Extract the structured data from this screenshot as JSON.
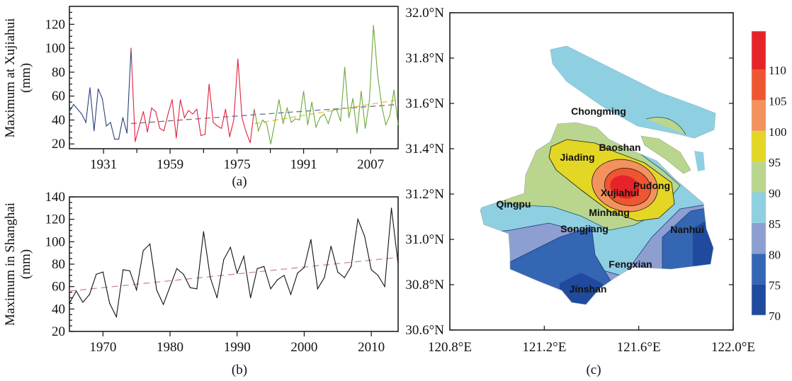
{
  "chart_data": [
    {
      "id": "a",
      "type": "line",
      "caption": "(a)",
      "ylabel_line1": "Maximum at Xujiahui",
      "ylabel_line2": "(mm)",
      "ylim": [
        16,
        135
      ],
      "yticks": [
        20,
        40,
        60,
        80,
        100,
        120
      ],
      "xtick_labels": [
        {
          "label": "1931",
          "index": 8.3
        },
        {
          "label": "1959",
          "index": 24.5
        },
        {
          "label": "1975",
          "index": 40.8
        },
        {
          "label": "1991",
          "index": 57.0
        },
        {
          "label": "2007",
          "index": 73.3
        }
      ],
      "series": [
        {
          "name": "period-1",
          "color": "#2b3f7a",
          "start_index": 0,
          "values": [
            47,
            53,
            49,
            45,
            38,
            67,
            31,
            66,
            58,
            35,
            38,
            24,
            24,
            42,
            29,
            100
          ]
        },
        {
          "name": "period-2",
          "color": "#e0203a",
          "start_index": 15,
          "values": [
            100,
            22,
            35,
            47,
            30,
            50,
            47,
            33,
            31,
            45,
            57,
            25,
            57,
            42,
            48,
            45,
            49,
            27,
            28,
            70,
            38,
            35,
            33,
            49,
            26,
            40,
            91,
            42,
            30,
            21,
            49
          ]
        },
        {
          "name": "period-3",
          "color": "#6aa83a",
          "start_index": 45,
          "values": [
            49,
            31,
            40,
            37,
            20,
            38,
            57,
            37,
            50,
            38,
            41,
            40,
            64,
            36,
            55,
            34,
            42,
            45,
            37,
            48,
            49,
            39,
            84,
            42,
            58,
            29,
            64,
            33,
            56,
            119,
            78,
            52,
            36,
            44,
            65,
            36
          ]
        }
      ],
      "trends": [
        {
          "name": "overall-trend",
          "color": "#6a6f96",
          "from": [
            15,
            37
          ],
          "to": [
            80,
            53
          ]
        },
        {
          "name": "recent-trend",
          "color": "#e2c42a",
          "from": [
            45,
            37
          ],
          "to": [
            80,
            57
          ]
        }
      ]
    },
    {
      "id": "b",
      "type": "line",
      "caption": "(b)",
      "ylabel_line1": "Maximum in Shanghai",
      "ylabel_line2": "(mm)",
      "xlim": [
        1965,
        2014
      ],
      "ylim": [
        20,
        140
      ],
      "yticks": [
        20,
        40,
        60,
        80,
        100,
        120,
        140
      ],
      "xticks": [
        1970,
        1980,
        1990,
        2000,
        2010
      ],
      "x": [
        1965,
        1966,
        1967,
        1968,
        1969,
        1970,
        1971,
        1972,
        1973,
        1974,
        1975,
        1976,
        1977,
        1978,
        1979,
        1980,
        1981,
        1982,
        1983,
        1984,
        1985,
        1986,
        1987,
        1988,
        1989,
        1990,
        1991,
        1992,
        1993,
        1994,
        1995,
        1996,
        1997,
        1998,
        1999,
        2000,
        2001,
        2002,
        2003,
        2004,
        2005,
        2006,
        2007,
        2008,
        2009,
        2010,
        2011,
        2012,
        2013,
        2014
      ],
      "values": [
        45,
        56,
        46,
        53,
        71,
        73,
        45,
        33,
        75,
        74,
        57,
        92,
        98,
        57,
        44,
        60,
        76,
        71,
        59,
        58,
        109,
        68,
        50,
        84,
        95,
        72,
        87,
        50,
        76,
        78,
        58,
        66,
        70,
        53,
        72,
        77,
        102,
        58,
        68,
        96,
        73,
        68,
        78,
        120,
        105,
        75,
        70,
        60,
        130,
        80
      ],
      "line_color": "#111111",
      "trend": {
        "color": "#c98a9a",
        "from": [
          1965,
          56
        ],
        "to": [
          2014,
          86
        ]
      }
    },
    {
      "id": "c",
      "type": "heatmap",
      "caption": "(c)",
      "lat_labels": [
        "32.0°N",
        "31.8°N",
        "31.6°N",
        "31.4°N",
        "31.2°N",
        "31.0°N",
        "30.8°N",
        "30.6°N"
      ],
      "lat_values": [
        32.0,
        31.8,
        31.6,
        31.4,
        31.2,
        31.0,
        30.8,
        30.6
      ],
      "lon_labels": [
        "120.8°E",
        "121.2°E",
        "121.6°E",
        "122.0°E"
      ],
      "lon_values": [
        120.8,
        121.2,
        121.6,
        122.0
      ],
      "districts": [
        "Chongming",
        "Baoshan",
        "Jiading",
        "Pudong",
        "Xujiahui",
        "Qingpu",
        "Minhang",
        "Songjiang",
        "Nanhui",
        "Fengxian",
        "Jinshan"
      ],
      "colorbar": {
        "labels": [
          "110",
          "105",
          "100",
          "95",
          "90",
          "85",
          "80",
          "75",
          "70"
        ],
        "levels": [
          70,
          75,
          80,
          85,
          90,
          95,
          100,
          105,
          110
        ],
        "colors": [
          "#1f4a9e",
          "#3466b4",
          "#8c9fd0",
          "#8fcfe2",
          "#bad68e",
          "#e4d624",
          "#f3925c",
          "#ee5632",
          "#e52329"
        ]
      }
    }
  ]
}
